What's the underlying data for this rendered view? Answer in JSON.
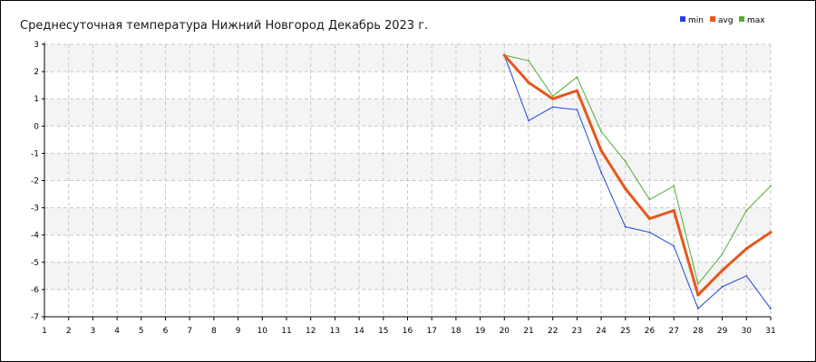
{
  "chart_data": {
    "type": "line",
    "title": "Среднесуточная температура Нижний Новгород  Декабрь 2023 г.",
    "xlabel": "",
    "ylabel": "",
    "xlim": [
      1,
      31
    ],
    "ylim": [
      -7,
      3
    ],
    "grid": true,
    "legend_position": "top-right",
    "x": [
      1,
      2,
      3,
      4,
      5,
      6,
      7,
      8,
      9,
      10,
      11,
      12,
      13,
      14,
      15,
      16,
      17,
      18,
      19,
      20,
      21,
      22,
      23,
      24,
      25,
      26,
      27,
      28,
      29,
      30,
      31
    ],
    "y_ticks": [
      3,
      2,
      1,
      0,
      -1,
      -2,
      -3,
      -4,
      -5,
      -6,
      -7
    ],
    "series": [
      {
        "name": "min",
        "color": "#2244dd",
        "x": [
          20,
          21,
          22,
          23,
          24,
          25,
          26,
          27,
          28,
          29,
          30,
          31
        ],
        "values": [
          2.6,
          0.2,
          0.7,
          0.6,
          -1.7,
          -3.7,
          -3.9,
          -4.4,
          -6.7,
          -5.9,
          -5.5,
          -6.7
        ]
      },
      {
        "name": "avg",
        "color": "#e8561c",
        "x": [
          20,
          21,
          22,
          23,
          24,
          25,
          26,
          27,
          28,
          29,
          30,
          31
        ],
        "values": [
          2.6,
          1.6,
          1.0,
          1.3,
          -0.9,
          -2.3,
          -3.4,
          -3.1,
          -6.2,
          -5.3,
          -4.5,
          -3.9
        ]
      },
      {
        "name": "max",
        "color": "#55aa33",
        "x": [
          20,
          21,
          22,
          23,
          24,
          25,
          26,
          27,
          28,
          29,
          30,
          31
        ],
        "values": [
          2.6,
          2.4,
          1.1,
          1.8,
          -0.2,
          -1.3,
          -2.7,
          -2.2,
          -5.8,
          -4.7,
          -3.1,
          -2.2
        ]
      }
    ]
  }
}
